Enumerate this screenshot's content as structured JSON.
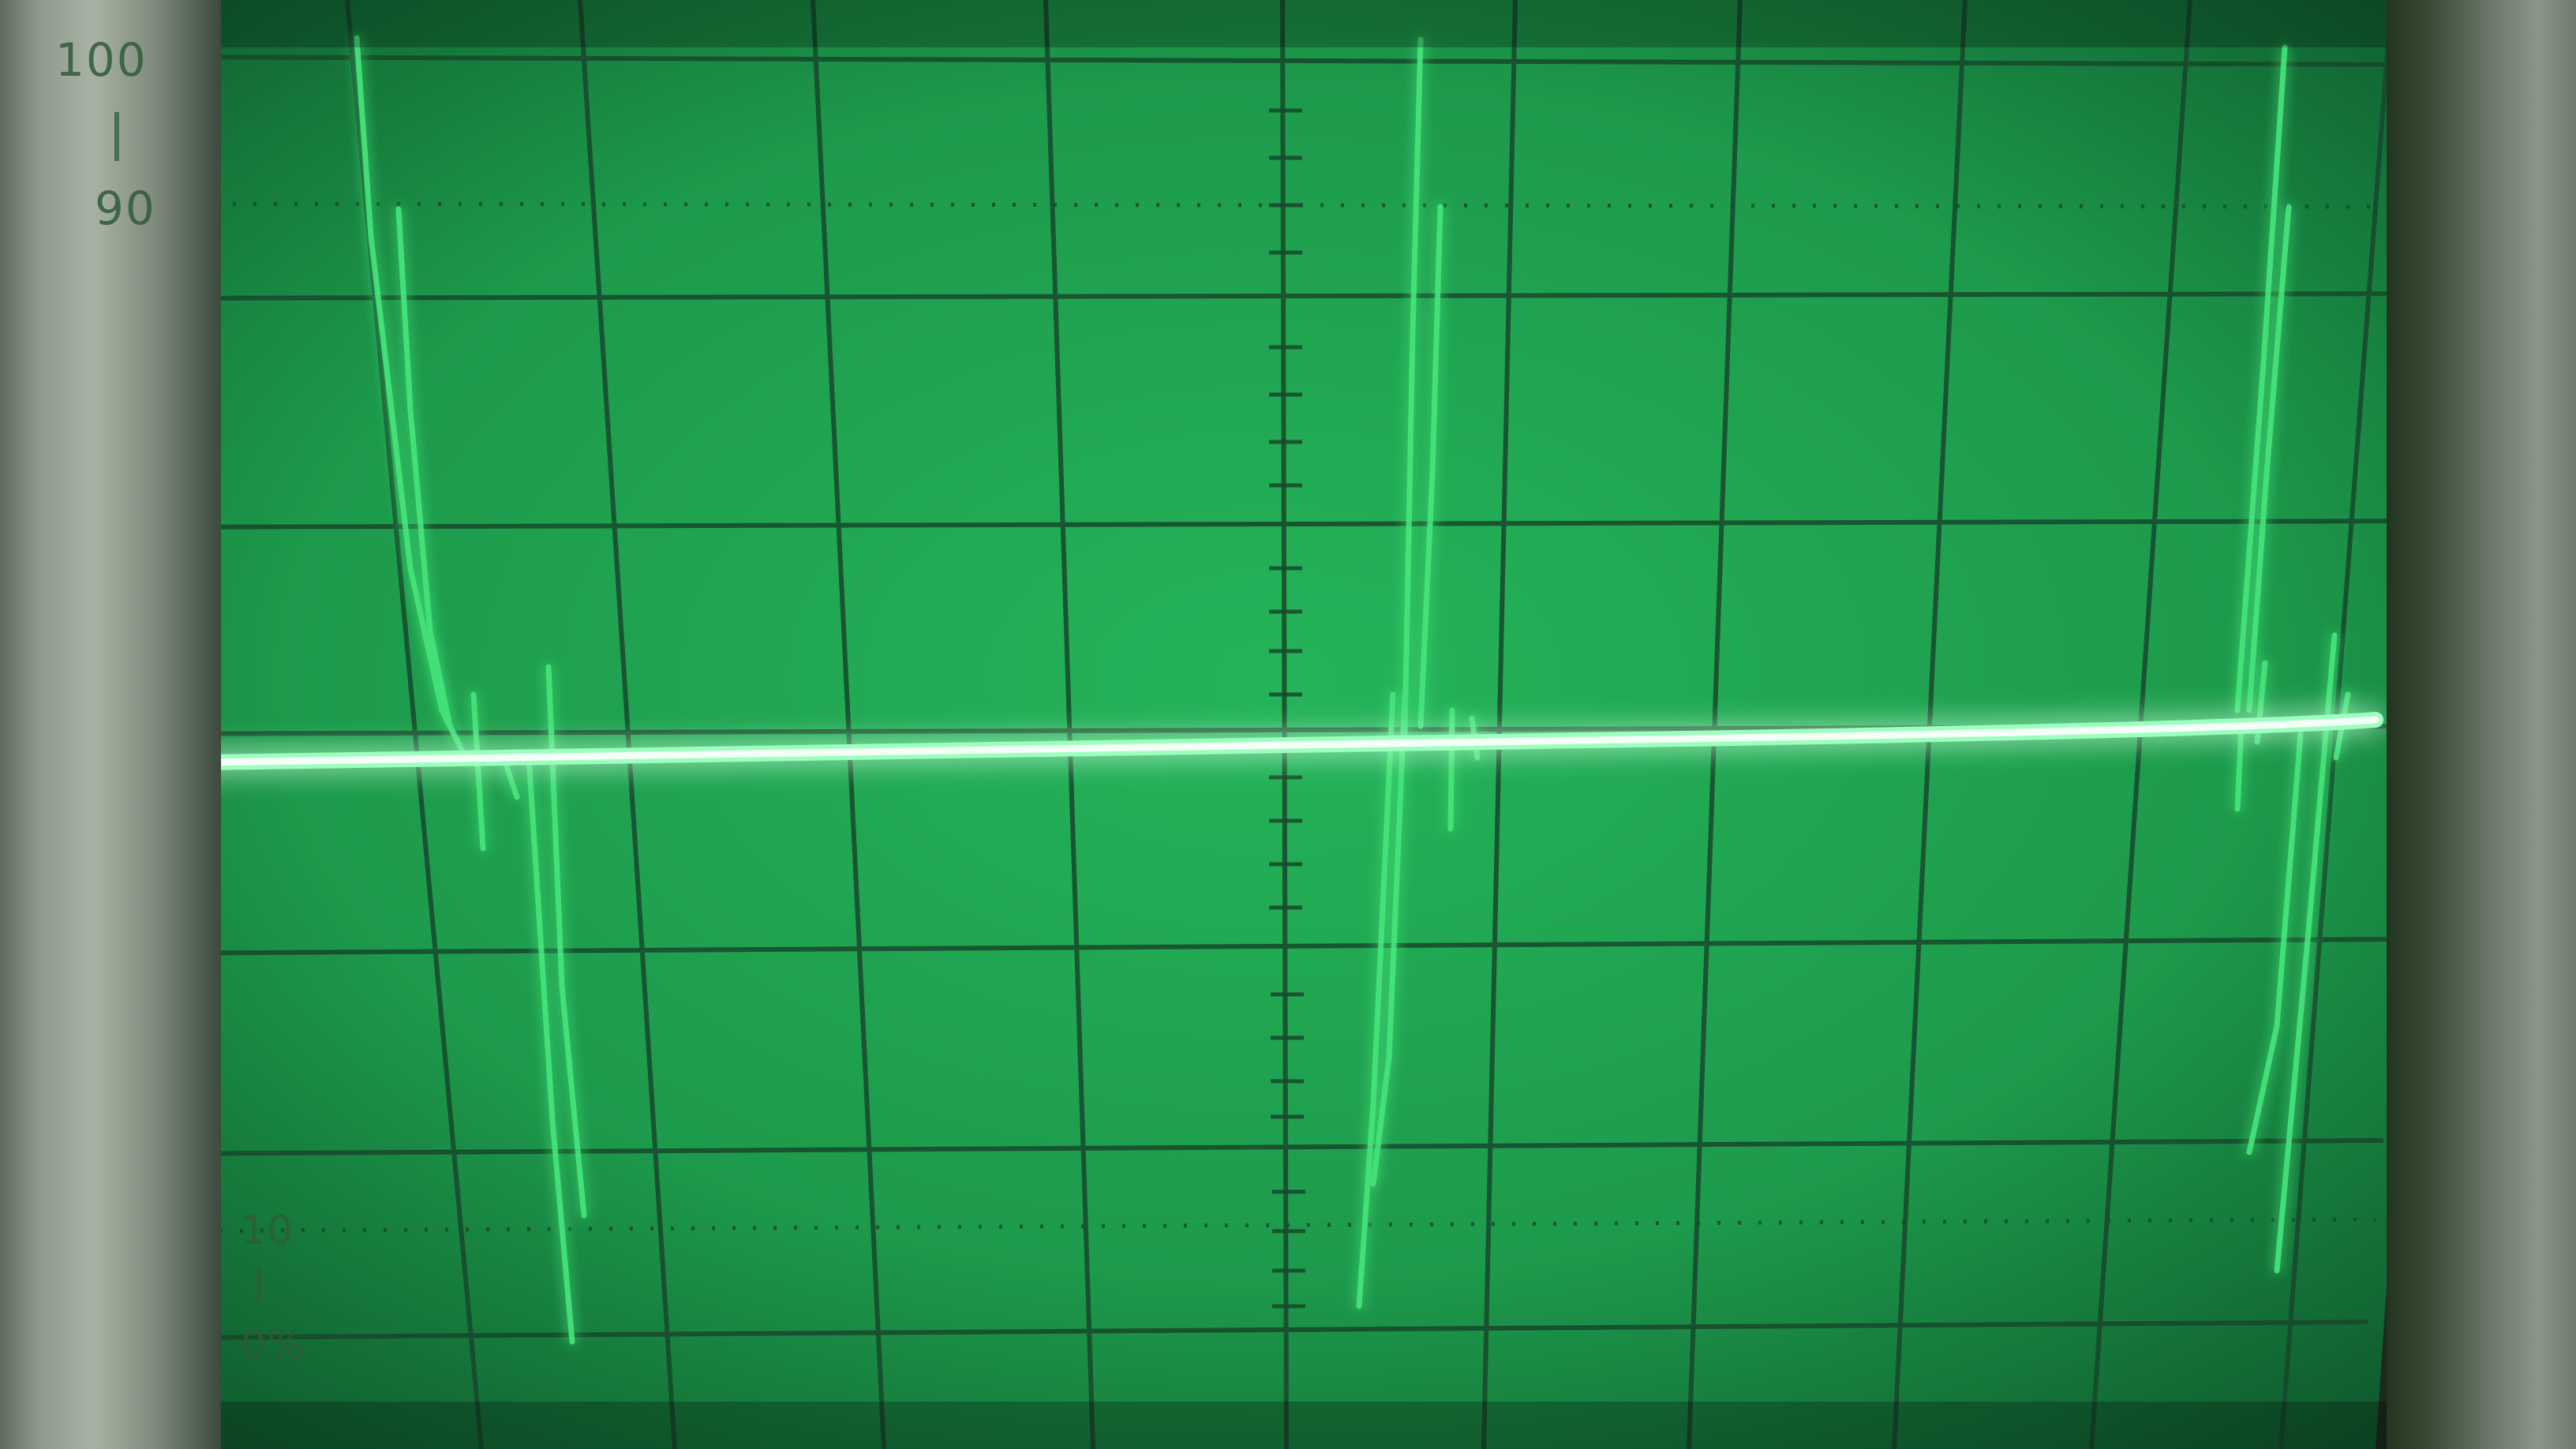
{
  "scene": {
    "subject": "oscilloscope-crt-trace",
    "trace_color": "#43e878",
    "screen_color": "#1f9a4d",
    "graticule_color": "#17482b"
  },
  "graticule": {
    "labels": {
      "top_100": "100",
      "top_90": "90",
      "bottom_10": "10",
      "bottom_0pct": "0%"
    }
  }
}
